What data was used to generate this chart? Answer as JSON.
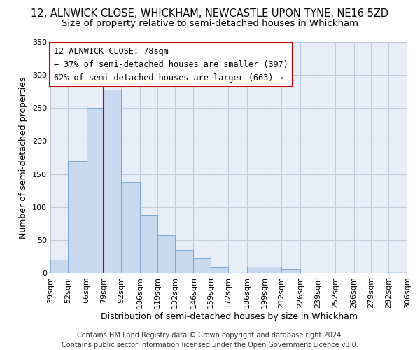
{
  "title": "12, ALNWICK CLOSE, WHICKHAM, NEWCASTLE UPON TYNE, NE16 5ZD",
  "subtitle": "Size of property relative to semi-detached houses in Whickham",
  "xlabel": "Distribution of semi-detached houses by size in Whickham",
  "ylabel": "Number of semi-detached properties",
  "bin_edges": [
    39,
    52,
    66,
    79,
    92,
    106,
    119,
    132,
    146,
    159,
    172,
    186,
    199,
    212,
    226,
    239,
    252,
    266,
    279,
    292,
    306
  ],
  "bin_labels": [
    "39sqm",
    "52sqm",
    "66sqm",
    "79sqm",
    "92sqm",
    "106sqm",
    "119sqm",
    "132sqm",
    "146sqm",
    "159sqm",
    "172sqm",
    "186sqm",
    "199sqm",
    "212sqm",
    "226sqm",
    "239sqm",
    "252sqm",
    "266sqm",
    "279sqm",
    "292sqm",
    "306sqm"
  ],
  "bar_heights": [
    20,
    170,
    250,
    278,
    138,
    88,
    57,
    35,
    22,
    8,
    0,
    10,
    10,
    5,
    0,
    0,
    0,
    0,
    0,
    2
  ],
  "bar_color": "#c9d9f0",
  "bar_edge_color": "#7aa8d8",
  "property_line_x": 79,
  "property_line_color": "#cc0000",
  "annotation_title": "12 ALNWICK CLOSE: 78sqm",
  "annotation_line1": "← 37% of semi-detached houses are smaller (397)",
  "annotation_line2": "62% of semi-detached houses are larger (663) →",
  "annotation_box_color": "#ffffff",
  "annotation_box_edge_color": "#cc0000",
  "ylim": [
    0,
    350
  ],
  "yticks": [
    0,
    50,
    100,
    150,
    200,
    250,
    300,
    350
  ],
  "footer_line1": "Contains HM Land Registry data © Crown copyright and database right 2024.",
  "footer_line2": "Contains public sector information licensed under the Open Government Licence v3.0.",
  "background_color": "#ffffff",
  "plot_bg_color": "#e8eef8",
  "grid_color": "#c0ccdd",
  "title_fontsize": 10.5,
  "subtitle_fontsize": 9.5,
  "axis_label_fontsize": 9,
  "tick_fontsize": 8,
  "annotation_fontsize": 8.5,
  "footer_fontsize": 7
}
